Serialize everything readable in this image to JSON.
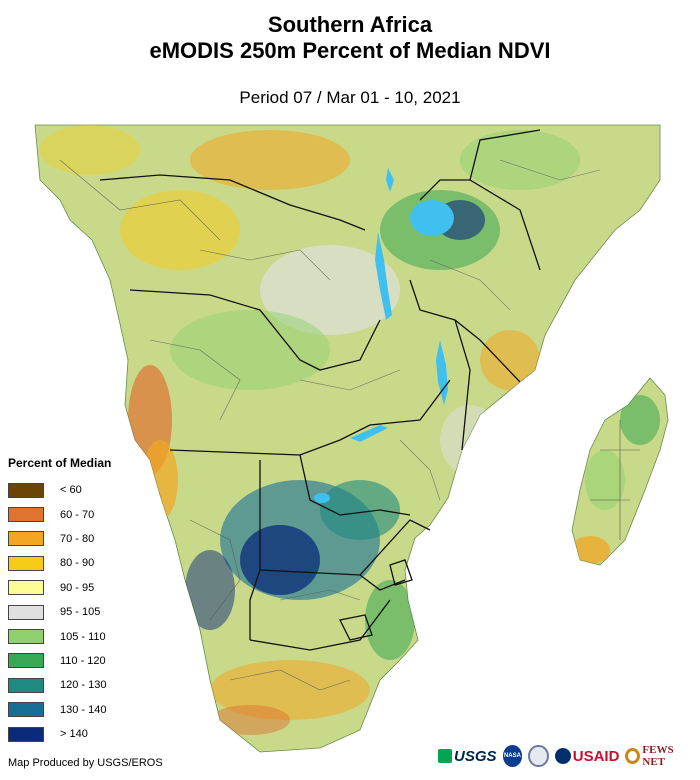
{
  "header": {
    "title_line1": "Southern Africa",
    "title_line2": "eMODIS 250m Percent of Median NDVI",
    "subtitle": "Period 07 / Mar 01 - 10, 2021"
  },
  "legend": {
    "title": "Percent of Median",
    "items": [
      {
        "label": "< 60",
        "color": "#6b4406"
      },
      {
        "label": "60 - 70",
        "color": "#de7430"
      },
      {
        "label": "70 - 80",
        "color": "#f2a622"
      },
      {
        "label": "80 - 90",
        "color": "#f7cc16"
      },
      {
        "label": "90 - 95",
        "color": "#fdfd96"
      },
      {
        "label": "95 - 105",
        "color": "#e0e0e0"
      },
      {
        "label": "105 - 110",
        "color": "#8fd16f"
      },
      {
        "label": "110 - 120",
        "color": "#38a853"
      },
      {
        "label": "120 - 130",
        "color": "#1f8a7f"
      },
      {
        "label": "130 - 140",
        "color": "#176f96"
      },
      {
        "label": "> 140",
        "color": "#0b2b7a"
      }
    ]
  },
  "footer": {
    "credit": "Map Produced by USGS/EROS",
    "logos": [
      {
        "name": "USGS",
        "text": "USGS"
      },
      {
        "name": "NASA",
        "text": "NASA"
      },
      {
        "name": "DHS",
        "text": ""
      },
      {
        "name": "USAID",
        "text": "USAID"
      },
      {
        "name": "FEWS NET",
        "text": "FEWS NET"
      }
    ]
  },
  "map": {
    "ocean_color": "#ffffff",
    "land_base_color": "#c9d98a",
    "water_color": "#3fc0ee",
    "border_color": "#111111",
    "admin_color": "#555555"
  }
}
